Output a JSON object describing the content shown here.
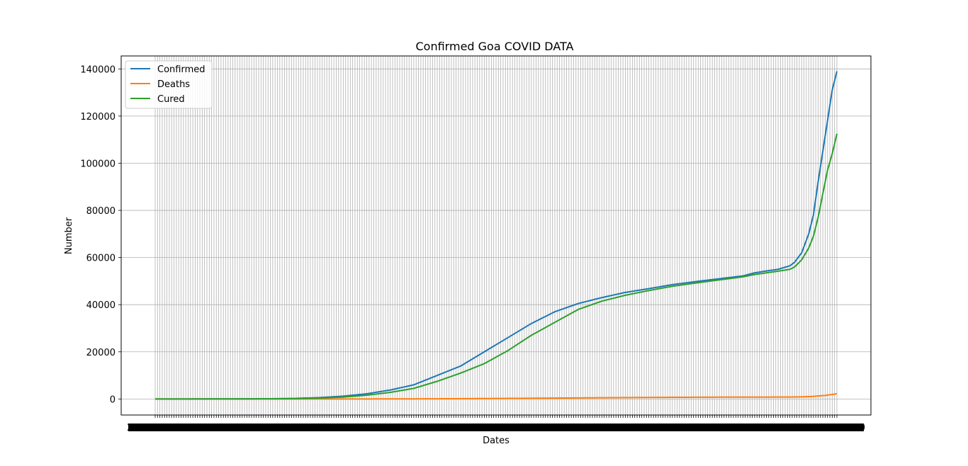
{
  "chart_data": {
    "type": "line",
    "title": "Confirmed Goa COVID DATA",
    "xlabel": "Dates",
    "ylabel": "Number",
    "ylim": [
      -6800,
      145500
    ],
    "yticks": [
      0,
      20000,
      40000,
      60000,
      80000,
      100000,
      120000,
      140000
    ],
    "ytick_labels": [
      "0",
      "20000",
      "40000",
      "60000",
      "80000",
      "100000",
      "120000",
      "140000"
    ],
    "grid": true,
    "legend_position": "top-left",
    "x_count": 290,
    "x_tick_labels_note_first": "2",
    "x_tick_labels_note_last": "2020",
    "series": [
      {
        "name": "Confirmed",
        "color": "#1f77b4",
        "keyframes": [
          [
            0,
            0
          ],
          [
            20,
            20
          ],
          [
            40,
            60
          ],
          [
            50,
            120
          ],
          [
            60,
            250
          ],
          [
            70,
            600
          ],
          [
            80,
            1200
          ],
          [
            90,
            2200
          ],
          [
            100,
            3800
          ],
          [
            110,
            6000
          ],
          [
            120,
            10000
          ],
          [
            130,
            14000
          ],
          [
            140,
            20000
          ],
          [
            150,
            26000
          ],
          [
            160,
            32000
          ],
          [
            170,
            37000
          ],
          [
            180,
            40500
          ],
          [
            190,
            43000
          ],
          [
            200,
            45200
          ],
          [
            210,
            46800
          ],
          [
            220,
            48500
          ],
          [
            230,
            49800
          ],
          [
            240,
            51000
          ],
          [
            250,
            52200
          ],
          [
            255,
            53500
          ],
          [
            260,
            54300
          ],
          [
            265,
            55000
          ],
          [
            270,
            56500
          ],
          [
            272,
            58000
          ],
          [
            275,
            62000
          ],
          [
            278,
            70000
          ],
          [
            280,
            78000
          ],
          [
            282,
            92000
          ],
          [
            284,
            105000
          ],
          [
            286,
            118000
          ],
          [
            288,
            131000
          ],
          [
            290,
            139000
          ]
        ]
      },
      {
        "name": "Deaths",
        "color": "#ff7f0e",
        "keyframes": [
          [
            0,
            0
          ],
          [
            60,
            0
          ],
          [
            80,
            5
          ],
          [
            100,
            20
          ],
          [
            120,
            80
          ],
          [
            140,
            180
          ],
          [
            160,
            300
          ],
          [
            180,
            450
          ],
          [
            200,
            600
          ],
          [
            220,
            700
          ],
          [
            240,
            770
          ],
          [
            260,
            800
          ],
          [
            270,
            830
          ],
          [
            275,
            900
          ],
          [
            280,
            1100
          ],
          [
            285,
            1500
          ],
          [
            290,
            2200
          ]
        ]
      },
      {
        "name": "Cured",
        "color": "#2ca02c",
        "keyframes": [
          [
            0,
            0
          ],
          [
            20,
            10
          ],
          [
            40,
            40
          ],
          [
            50,
            80
          ],
          [
            60,
            160
          ],
          [
            70,
            400
          ],
          [
            80,
            800
          ],
          [
            90,
            1600
          ],
          [
            100,
            2800
          ],
          [
            110,
            4500
          ],
          [
            120,
            7500
          ],
          [
            130,
            11000
          ],
          [
            140,
            15000
          ],
          [
            150,
            20500
          ],
          [
            160,
            27000
          ],
          [
            170,
            32500
          ],
          [
            180,
            38000
          ],
          [
            190,
            41500
          ],
          [
            200,
            44000
          ],
          [
            210,
            46000
          ],
          [
            220,
            47800
          ],
          [
            230,
            49200
          ],
          [
            240,
            50500
          ],
          [
            250,
            51800
          ],
          [
            255,
            52800
          ],
          [
            260,
            53500
          ],
          [
            265,
            54200
          ],
          [
            270,
            55000
          ],
          [
            272,
            56000
          ],
          [
            275,
            59000
          ],
          [
            278,
            64000
          ],
          [
            280,
            69000
          ],
          [
            282,
            77000
          ],
          [
            284,
            87000
          ],
          [
            286,
            97000
          ],
          [
            288,
            104000
          ],
          [
            290,
            112500
          ]
        ]
      }
    ]
  }
}
